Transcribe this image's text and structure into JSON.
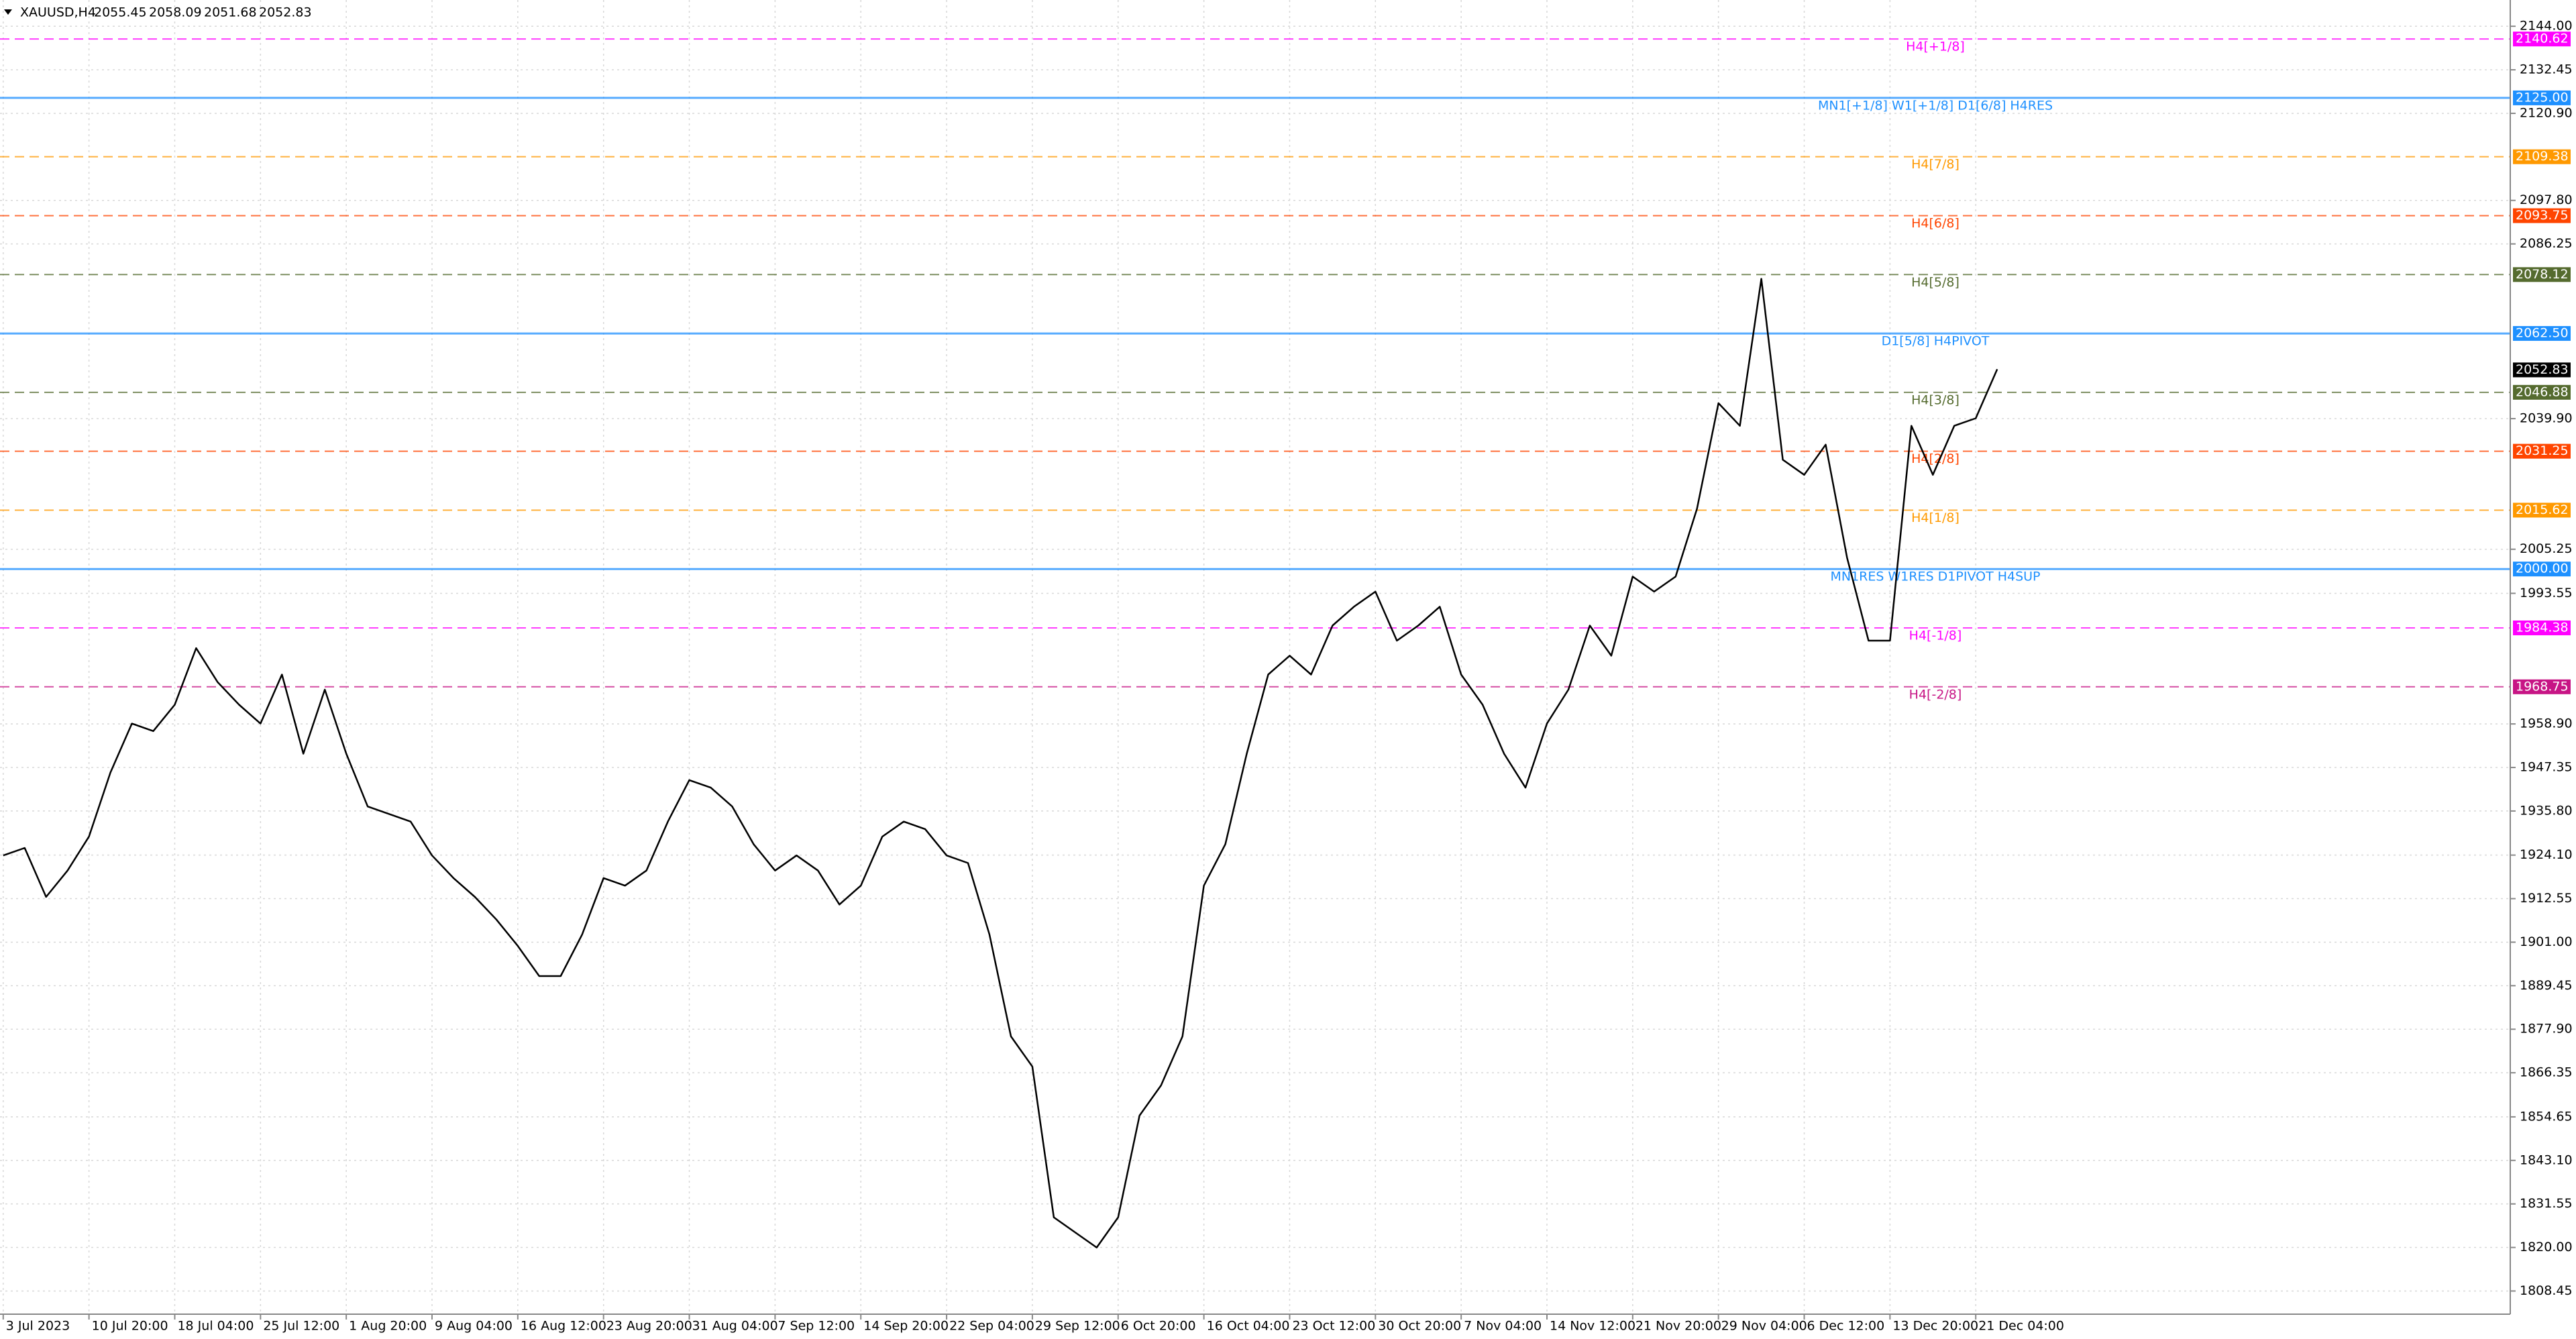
{
  "chart_data": {
    "type": "line",
    "title": "XAUUSD,H4",
    "quote": [
      2055.45,
      2058.09,
      2051.68,
      2052.83
    ],
    "series": [
      {
        "name": "XAUUSD",
        "color": "#000000",
        "values": [
          1924,
          1926,
          1913,
          1920,
          1929,
          1946,
          1959,
          1957,
          1964,
          1979,
          1970,
          1964,
          1959,
          1972,
          1951,
          1968,
          1951,
          1937,
          1935,
          1933,
          1924,
          1918,
          1913,
          1907,
          1900,
          1892,
          1892,
          1903,
          1918,
          1916,
          1920,
          1933,
          1944,
          1942,
          1937,
          1927,
          1920,
          1924,
          1920,
          1911,
          1916,
          1929,
          1933,
          1931,
          1924,
          1922,
          1903,
          1876,
          1868,
          1828,
          1824,
          1820,
          1828,
          1855,
          1863,
          1876,
          1916,
          1927,
          1951,
          1972,
          1977,
          1972,
          1985,
          1990,
          1994,
          1981,
          1985,
          1990,
          1972,
          1964,
          1951,
          1942,
          1959,
          1968,
          1985,
          1977,
          1998,
          1994,
          1998,
          2016,
          2044,
          2038,
          2077,
          2029,
          2025,
          2033,
          2003,
          1981,
          1981,
          2038,
          2025,
          2038,
          2040,
          2053
        ]
      }
    ],
    "current_price": 2052.83,
    "levels": [
      {
        "label": "H4[+1/8]",
        "value": 2140.62,
        "value_label": "2140.62",
        "color": "#ff00ff",
        "style": "dashed"
      },
      {
        "label": "MN1[+1/8] W1[+1/8] D1[6/8] H4RES",
        "value": 2125,
        "value_label": "2125.00",
        "color": "#1e90ff",
        "style": "solid"
      },
      {
        "label": "H4[7/8]",
        "value": 2109.38,
        "value_label": "2109.38",
        "color": "#ff9900",
        "style": "dashed"
      },
      {
        "label": "H4[6/8]",
        "value": 2093.75,
        "value_label": "2093.75",
        "color": "#ff4500",
        "style": "dashed"
      },
      {
        "label": "H4[5/8]",
        "value": 2078.12,
        "value_label": "2078.12",
        "color": "#556b2f",
        "style": "dashed"
      },
      {
        "label": "D1[5/8] H4PIVOT",
        "value": 2062.5,
        "value_label": "2062.50",
        "color": "#1e90ff",
        "style": "solid"
      },
      {
        "label": "H4[3/8]",
        "value": 2046.88,
        "value_label": "2046.88",
        "color": "#556b2f",
        "style": "dashed"
      },
      {
        "label": "H4[2/8]",
        "value": 2031.25,
        "value_label": "2031.25",
        "color": "#ff4500",
        "style": "dashed"
      },
      {
        "label": "H4[1/8]",
        "value": 2015.62,
        "value_label": "2015.62",
        "color": "#ff9900",
        "style": "dashed"
      },
      {
        "label": "MN1RES W1RES D1PIVOT H4SUP",
        "value": 2000,
        "value_label": "2000.00",
        "color": "#1e90ff",
        "style": "solid"
      },
      {
        "label": "H4[-1/8]",
        "value": 1984.38,
        "value_label": "1984.38",
        "color": "#ff00ff",
        "style": "dashed"
      },
      {
        "label": "H4[-2/8]",
        "value": 1968.75,
        "value_label": "1968.75",
        "color": "#c71585",
        "style": "dashed"
      }
    ],
    "ylim": [
      1802.3,
      2150.97
    ],
    "yticks": [
      {
        "value": 2144,
        "label": "2144.00"
      },
      2132.45,
      {
        "value": 2120.9,
        "label": "2120.90"
      },
      {
        "value": 2097.8,
        "label": "2097.80"
      },
      2086.25,
      {
        "value": 2039.9,
        "label": "2039.90"
      },
      2005.25,
      1993.55,
      {
        "value": 1958.9,
        "label": "1958.90"
      },
      1947.35,
      {
        "value": 1935.8,
        "label": "1935.80"
      },
      {
        "value": 1924.1,
        "label": "1924.10"
      },
      1912.55,
      {
        "value": 1901,
        "label": "1901.00"
      },
      1889.45,
      {
        "value": 1877.9,
        "label": "1877.90"
      },
      1866.35,
      1854.65,
      {
        "value": 1843.1,
        "label": "1843.10"
      },
      1831.55,
      {
        "value": 1820,
        "label": "1820.00"
      },
      1808.45
    ],
    "xlim": [
      -0.15,
      116.93
    ],
    "xticks": [
      {
        "value": 0,
        "label": "3 Jul 2023"
      },
      {
        "value": 4,
        "label": "10 Jul 20:00"
      },
      {
        "value": 8,
        "label": "18 Jul 04:00"
      },
      {
        "value": 12,
        "label": "25 Jul 12:00"
      },
      {
        "value": 16,
        "label": "1 Aug 20:00"
      },
      {
        "value": 20,
        "label": "9 Aug 04:00"
      },
      {
        "value": 24,
        "label": "16 Aug 12:00"
      },
      {
        "value": 28,
        "label": "23 Aug 20:00"
      },
      {
        "value": 32,
        "label": "31 Aug 04:00"
      },
      {
        "value": 36,
        "label": "7 Sep 12:00"
      },
      {
        "value": 40,
        "label": "14 Sep 20:00"
      },
      {
        "value": 44,
        "label": "22 Sep 04:00"
      },
      {
        "value": 48,
        "label": "29 Sep 12:00"
      },
      {
        "value": 52,
        "label": "6 Oct 20:00"
      },
      {
        "value": 56,
        "label": "16 Oct 04:00"
      },
      {
        "value": 60,
        "label": "23 Oct 12:00"
      },
      {
        "value": 64,
        "label": "30 Oct 20:00"
      },
      {
        "value": 68,
        "label": "7 Nov 04:00"
      },
      {
        "value": 72,
        "label": "14 Nov 12:00"
      },
      {
        "value": 76,
        "label": "21 Nov 20:00"
      },
      {
        "value": 80,
        "label": "29 Nov 04:00"
      },
      {
        "value": 84,
        "label": "6 Dec 12:00"
      },
      {
        "value": 88,
        "label": "13 Dec 20:00"
      },
      {
        "value": 92,
        "label": "21 Dec 04:00"
      }
    ],
    "grid": true
  }
}
